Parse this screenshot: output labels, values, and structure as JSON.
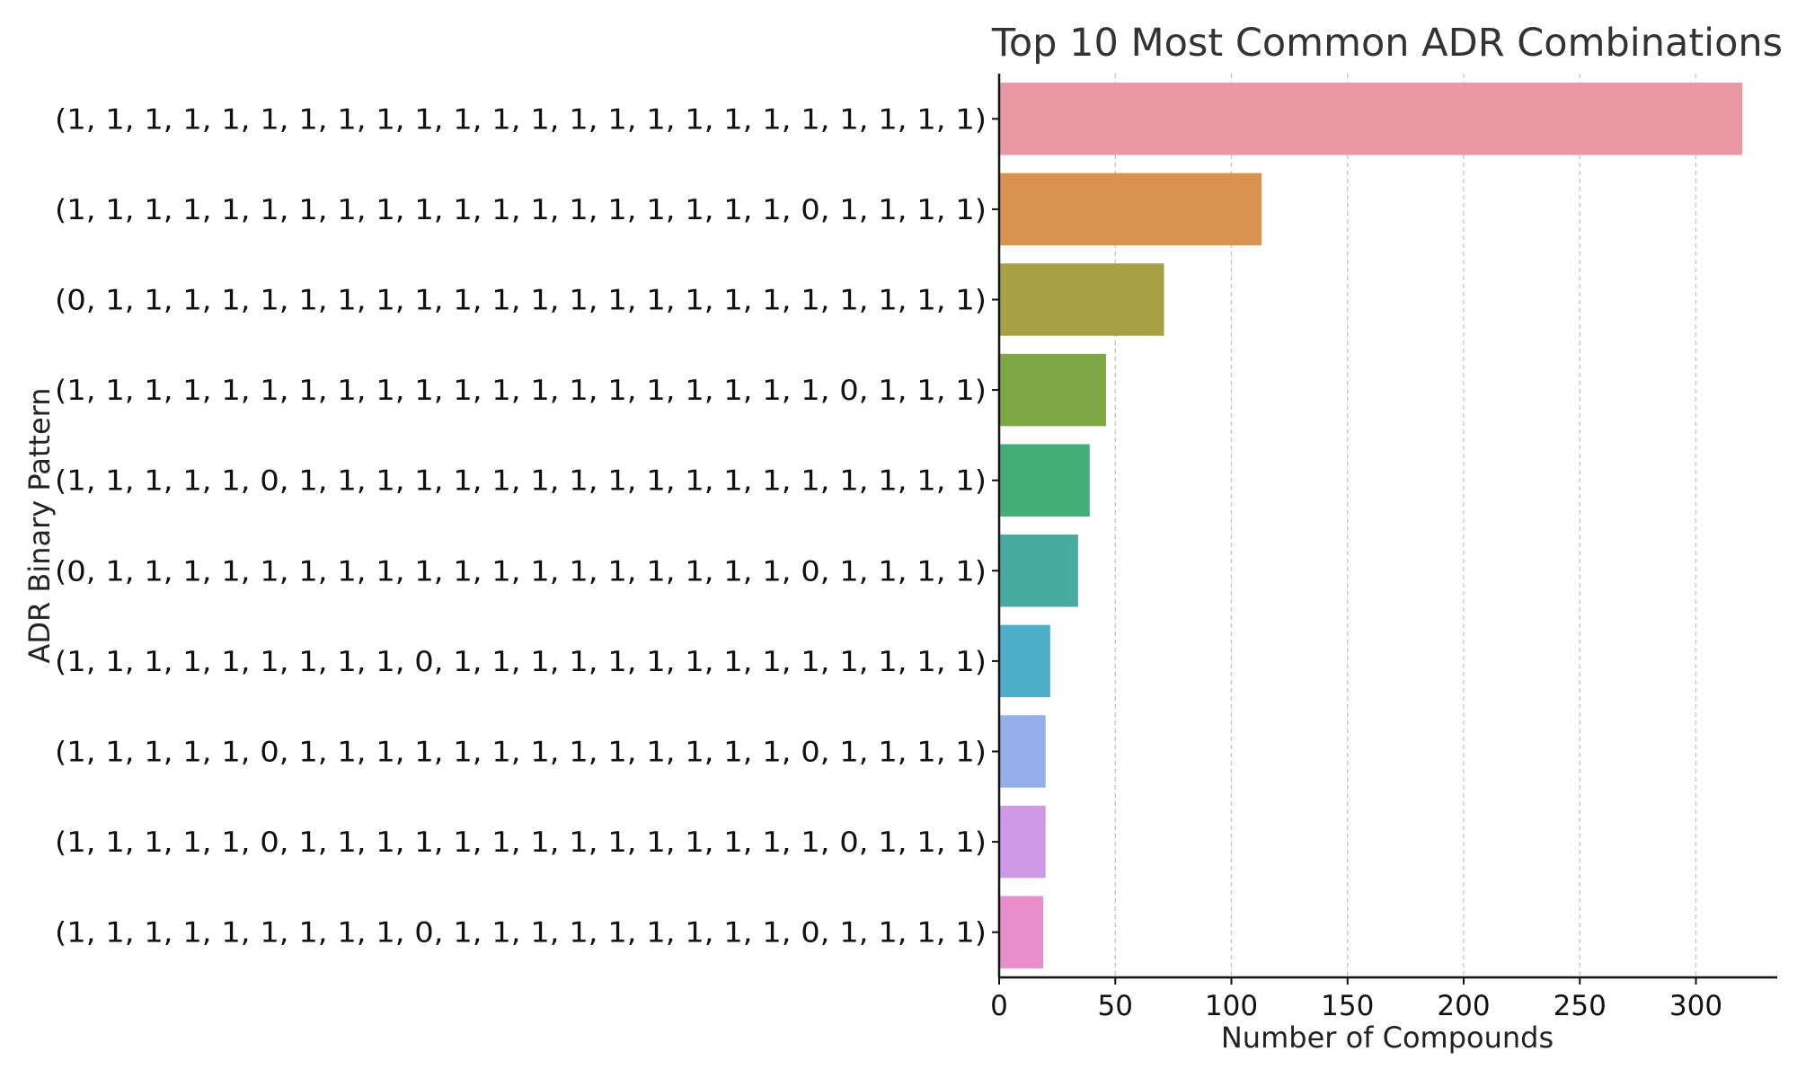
{
  "chart_data": {
    "type": "bar",
    "orientation": "horizontal",
    "title": "Top 10 Most Common ADR Combinations",
    "xlabel": "Number of Compounds",
    "ylabel": "ADR Binary Pattern",
    "categories": [
      "(1, 1, 1, 1, 1, 1, 1, 1, 1, 1, 1, 1, 1, 1, 1, 1, 1, 1, 1, 1, 1, 1, 1, 1)",
      "(1, 1, 1, 1, 1, 1, 1, 1, 1, 1, 1, 1, 1, 1, 1, 1, 1, 1, 1, 0, 1, 1, 1, 1)",
      "(0, 1, 1, 1, 1, 1, 1, 1, 1, 1, 1, 1, 1, 1, 1, 1, 1, 1, 1, 1, 1, 1, 1, 1)",
      "(1, 1, 1, 1, 1, 1, 1, 1, 1, 1, 1, 1, 1, 1, 1, 1, 1, 1, 1, 1, 0, 1, 1, 1)",
      "(1, 1, 1, 1, 1, 0, 1, 1, 1, 1, 1, 1, 1, 1, 1, 1, 1, 1, 1, 1, 1, 1, 1, 1)",
      "(0, 1, 1, 1, 1, 1, 1, 1, 1, 1, 1, 1, 1, 1, 1, 1, 1, 1, 1, 0, 1, 1, 1, 1)",
      "(1, 1, 1, 1, 1, 1, 1, 1, 1, 0, 1, 1, 1, 1, 1, 1, 1, 1, 1, 1, 1, 1, 1, 1)",
      "(1, 1, 1, 1, 1, 0, 1, 1, 1, 1, 1, 1, 1, 1, 1, 1, 1, 1, 1, 0, 1, 1, 1, 1)",
      "(1, 1, 1, 1, 1, 0, 1, 1, 1, 1, 1, 1, 1, 1, 1, 1, 1, 1, 1, 1, 0, 1, 1, 1)",
      "(1, 1, 1, 1, 1, 1, 1, 1, 1, 0, 1, 1, 1, 1, 1, 1, 1, 1, 1, 0, 1, 1, 1, 1)"
    ],
    "values": [
      320,
      113,
      71,
      46,
      39,
      34,
      22,
      20,
      20,
      19
    ],
    "colors": [
      "#ea96a3",
      "#d8944e",
      "#a99f44",
      "#7ea844",
      "#45ae78",
      "#48ab9f",
      "#4eaec8",
      "#93aee8",
      "#d099e6",
      "#e98dcb"
    ],
    "xlim": [
      0,
      335
    ],
    "xticks": [
      0,
      50,
      100,
      150,
      200,
      250,
      300
    ],
    "grid": "x-dashed"
  }
}
